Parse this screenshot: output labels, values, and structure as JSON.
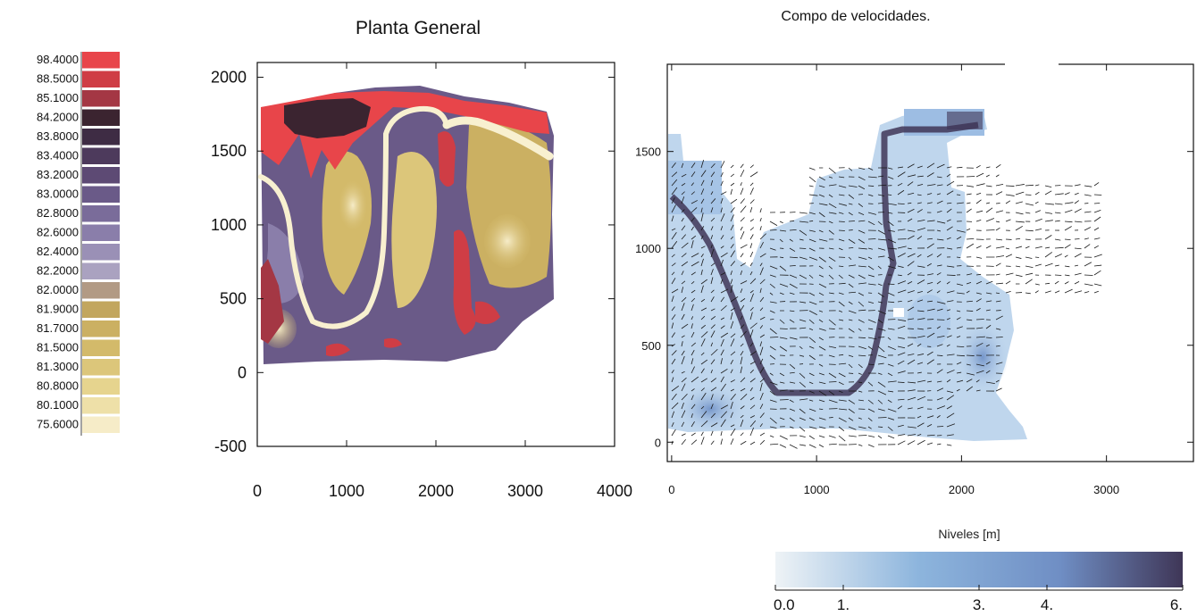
{
  "chart_data": [
    {
      "type": "heatmap",
      "title": "Planta General",
      "xlabel": "",
      "ylabel": "",
      "xlim": [
        0,
        4000
      ],
      "ylim": [
        -500,
        2100
      ],
      "x_ticks": [
        "0",
        "1000",
        "2000",
        "3000",
        "4000"
      ],
      "y_ticks": [
        "2000",
        "1500",
        "1000",
        "500",
        "0",
        "-500"
      ],
      "x_tick_values": [
        0,
        1000,
        2000,
        3000,
        4000
      ],
      "y_tick_values": [
        2000,
        1500,
        1000,
        500,
        0,
        -500
      ],
      "legend": {
        "placement": "left",
        "levels": [
          "98.4000",
          "88.5000",
          "85.1000",
          "84.2000",
          "83.8000",
          "83.4000",
          "83.2000",
          "83.0000",
          "82.8000",
          "82.6000",
          "82.4000",
          "82.2000",
          "82.0000",
          "81.9000",
          "81.7000",
          "81.5000",
          "81.3000",
          "80.8000",
          "80.1000",
          "75.6000"
        ],
        "colors": [
          "#e8454a",
          "#cf3d45",
          "#a43744",
          "#3b2430",
          "#3e2c44",
          "#4d3a5c",
          "#5d4a74",
          "#6a5a88",
          "#7a6c9a",
          "#8a7eaa",
          "#9a90b6",
          "#aaa2c0",
          "#b29a84",
          "#c2a65e",
          "#cbb062",
          "#d3ba6a",
          "#dcc67a",
          "#e6d48e",
          "#eee0a8",
          "#f6ecc8"
        ]
      }
    },
    {
      "type": "heatmap",
      "title": "Compo de velocidades.",
      "xlabel": "",
      "ylabel": "",
      "xlim": [
        -30,
        3600
      ],
      "ylim": [
        -100,
        1950
      ],
      "x_ticks": [
        "0",
        "1000",
        "2000",
        "3000"
      ],
      "y_ticks": [
        "1500",
        "1000",
        "500",
        "0"
      ],
      "x_tick_values": [
        0,
        1000,
        2000,
        3000
      ],
      "y_tick_values": [
        1500,
        1000,
        500,
        0
      ],
      "colorbar": {
        "label": "Niveles [m]",
        "placement": "bottom-right",
        "ticks": [
          "0.0",
          "1.",
          "3.",
          "4.",
          "6."
        ],
        "tick_values": [
          0,
          1,
          3,
          4,
          6
        ],
        "range": [
          0,
          6
        ],
        "colors": [
          "#eef3f6",
          "#8db5dd",
          "#3f3657"
        ]
      }
    }
  ]
}
